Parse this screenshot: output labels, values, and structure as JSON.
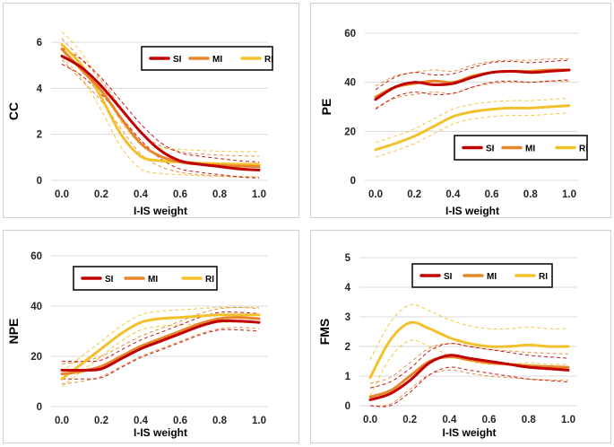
{
  "colors": {
    "SI": "#c00000",
    "MI": "#e8852a",
    "RI": "#f3c12c",
    "grid": "#d9d9d9"
  },
  "chart_data": [
    {
      "type": "line",
      "ylabel": "CC",
      "xlabel": "I-IS weight",
      "ylim": [
        0,
        6
      ],
      "yticks": [
        "0",
        "2",
        "4",
        "6"
      ],
      "x": [
        0.0,
        0.1,
        0.2,
        0.3,
        0.4,
        0.5,
        0.6,
        0.7,
        0.8,
        0.9,
        1.0
      ],
      "xticks": [
        "0.0",
        "0.2",
        "0.4",
        "0.6",
        "0.8",
        "1.0"
      ],
      "legend": [
        "SI",
        "MI",
        "RI"
      ],
      "series": [
        {
          "name": "SI",
          "values": [
            5.4,
            4.9,
            4.1,
            3.1,
            2.1,
            1.3,
            0.85,
            0.7,
            0.6,
            0.5,
            0.45
          ],
          "band": 0.35
        },
        {
          "name": "MI",
          "values": [
            5.7,
            4.8,
            3.9,
            2.7,
            1.6,
            1.05,
            0.8,
            0.7,
            0.65,
            0.62,
            0.6
          ],
          "band": 0.45
        },
        {
          "name": "RI",
          "values": [
            5.9,
            5.0,
            3.6,
            2.0,
            1.05,
            0.85,
            0.8,
            0.75,
            0.72,
            0.7,
            0.7
          ],
          "band": 0.55
        }
      ]
    },
    {
      "type": "line",
      "ylabel": "PE",
      "xlabel": "I-IS weight",
      "ylim": [
        0,
        60
      ],
      "yticks": [
        "0",
        "20",
        "40",
        "60"
      ],
      "x": [
        0.0,
        0.1,
        0.2,
        0.3,
        0.4,
        0.5,
        0.6,
        0.7,
        0.8,
        0.9,
        1.0
      ],
      "xticks": [
        "0.0",
        "0.2",
        "0.4",
        "0.6",
        "0.8",
        "1.0"
      ],
      "legend": [
        "SI",
        "MI",
        "RI"
      ],
      "series": [
        {
          "name": "SI",
          "values": [
            33,
            38,
            40,
            39,
            39.5,
            42,
            44,
            44.5,
            44,
            44.5,
            45
          ],
          "band": 4
        },
        {
          "name": "MI",
          "values": [
            34,
            38,
            39.5,
            40.5,
            40,
            42.5,
            44,
            44.5,
            44.5,
            45,
            45
          ],
          "band": 4.5
        },
        {
          "name": "RI",
          "values": [
            12.5,
            15,
            18,
            22,
            26,
            28,
            29,
            29.5,
            29.5,
            30,
            30.5
          ],
          "band": 3
        }
      ]
    },
    {
      "type": "line",
      "ylabel": "NPE",
      "xlabel": "I-IS weight",
      "ylim": [
        0,
        60
      ],
      "yticks": [
        "0",
        "20",
        "40",
        "60"
      ],
      "x": [
        0.0,
        0.1,
        0.2,
        0.3,
        0.4,
        0.5,
        0.6,
        0.7,
        0.8,
        0.9,
        1.0
      ],
      "xticks": [
        "0.0",
        "0.2",
        "0.4",
        "0.6",
        "0.8",
        "1.0"
      ],
      "legend": [
        "SI",
        "MI",
        "RI"
      ],
      "series": [
        {
          "name": "SI",
          "values": [
            14.5,
            14.5,
            15,
            19,
            23,
            26,
            29,
            32,
            34,
            34,
            33.5
          ],
          "band": 3.5
        },
        {
          "name": "MI",
          "values": [
            13,
            14,
            16,
            20,
            24,
            27,
            30,
            33,
            35,
            35.5,
            35
          ],
          "band": 4
        },
        {
          "name": "RI",
          "values": [
            11,
            17,
            23,
            29,
            33.5,
            35,
            35.5,
            36,
            36.5,
            36.5,
            36.5
          ],
          "band": 3
        }
      ]
    },
    {
      "type": "line",
      "ylabel": "FMS",
      "xlabel": "I-IS weight",
      "ylim": [
        0,
        5
      ],
      "yticks": [
        "0",
        "1",
        "2",
        "3",
        "4",
        "5"
      ],
      "x": [
        0.0,
        0.1,
        0.2,
        0.3,
        0.4,
        0.5,
        0.6,
        0.7,
        0.8,
        0.9,
        1.0
      ],
      "xticks": [
        "0.0",
        "0.2",
        "0.4",
        "0.6",
        "0.8",
        "1.0"
      ],
      "legend": [
        "SI",
        "MI",
        "RI"
      ],
      "series": [
        {
          "name": "SI",
          "values": [
            0.2,
            0.4,
            0.85,
            1.45,
            1.7,
            1.6,
            1.5,
            1.4,
            1.3,
            1.25,
            1.2
          ],
          "band": 0.4
        },
        {
          "name": "MI",
          "values": [
            0.3,
            0.5,
            1.0,
            1.5,
            1.65,
            1.55,
            1.45,
            1.4,
            1.35,
            1.32,
            1.3
          ],
          "band": 0.45
        },
        {
          "name": "RI",
          "values": [
            0.95,
            2.2,
            2.8,
            2.6,
            2.3,
            2.1,
            2.0,
            2.0,
            2.05,
            2.0,
            2.0
          ],
          "band": 0.6
        }
      ]
    }
  ]
}
